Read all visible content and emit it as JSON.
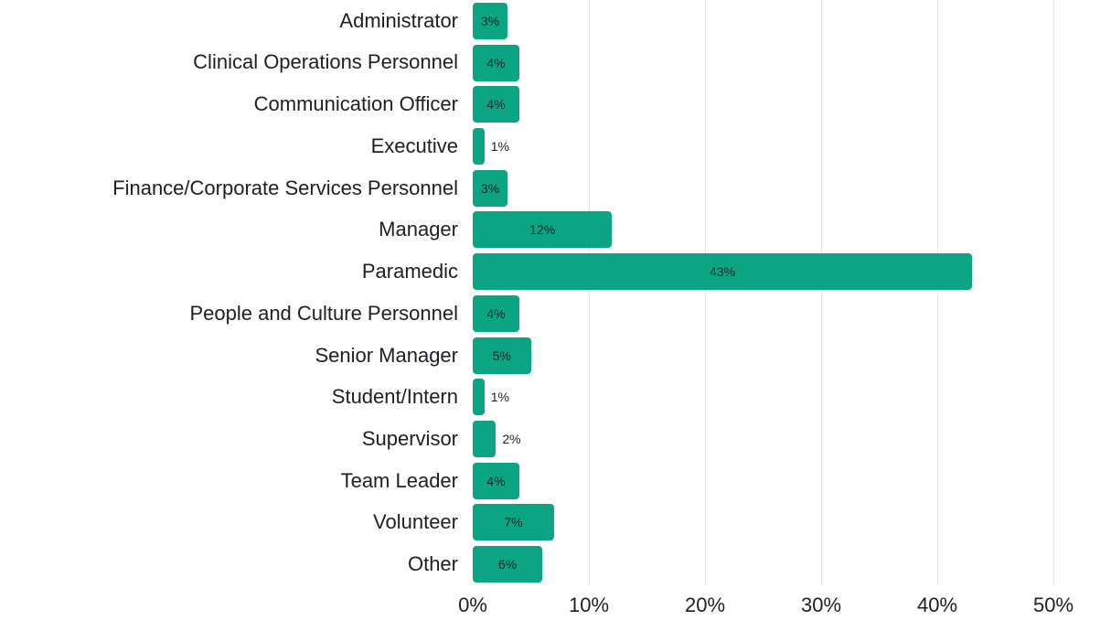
{
  "chart_data": {
    "type": "bar",
    "orientation": "horizontal",
    "title": "",
    "xlabel": "",
    "ylabel": "",
    "categories": [
      "Administrator",
      "Clinical Operations Personnel",
      "Communication Officer",
      "Executive",
      "Finance/Corporate Services Personnel",
      "Manager",
      "Paramedic",
      "People and Culture Personnel",
      "Senior Manager",
      "Student/Intern",
      "Supervisor",
      "Team Leader",
      "Volunteer",
      "Other"
    ],
    "values": [
      3,
      4,
      4,
      1,
      3,
      12,
      43,
      4,
      5,
      1,
      2,
      4,
      7,
      6
    ],
    "data_labels": [
      "3%",
      "4%",
      "4%",
      "1%",
      "3%",
      "12%",
      "43%",
      "4%",
      "5%",
      "1%",
      "2%",
      "4%",
      "7%",
      "6%"
    ],
    "x_ticks": [
      "0%",
      "10%",
      "20%",
      "30%",
      "40%",
      "50%"
    ],
    "x_tick_values": [
      0,
      10,
      20,
      30,
      40,
      50
    ],
    "xlim": [
      0,
      54
    ],
    "grid": "vertical-only",
    "legend": "none",
    "colors": {
      "bar": "#0ba584",
      "text": "#1c1f23",
      "gridline": "#e3e3e3",
      "background": "#ffffff"
    }
  }
}
